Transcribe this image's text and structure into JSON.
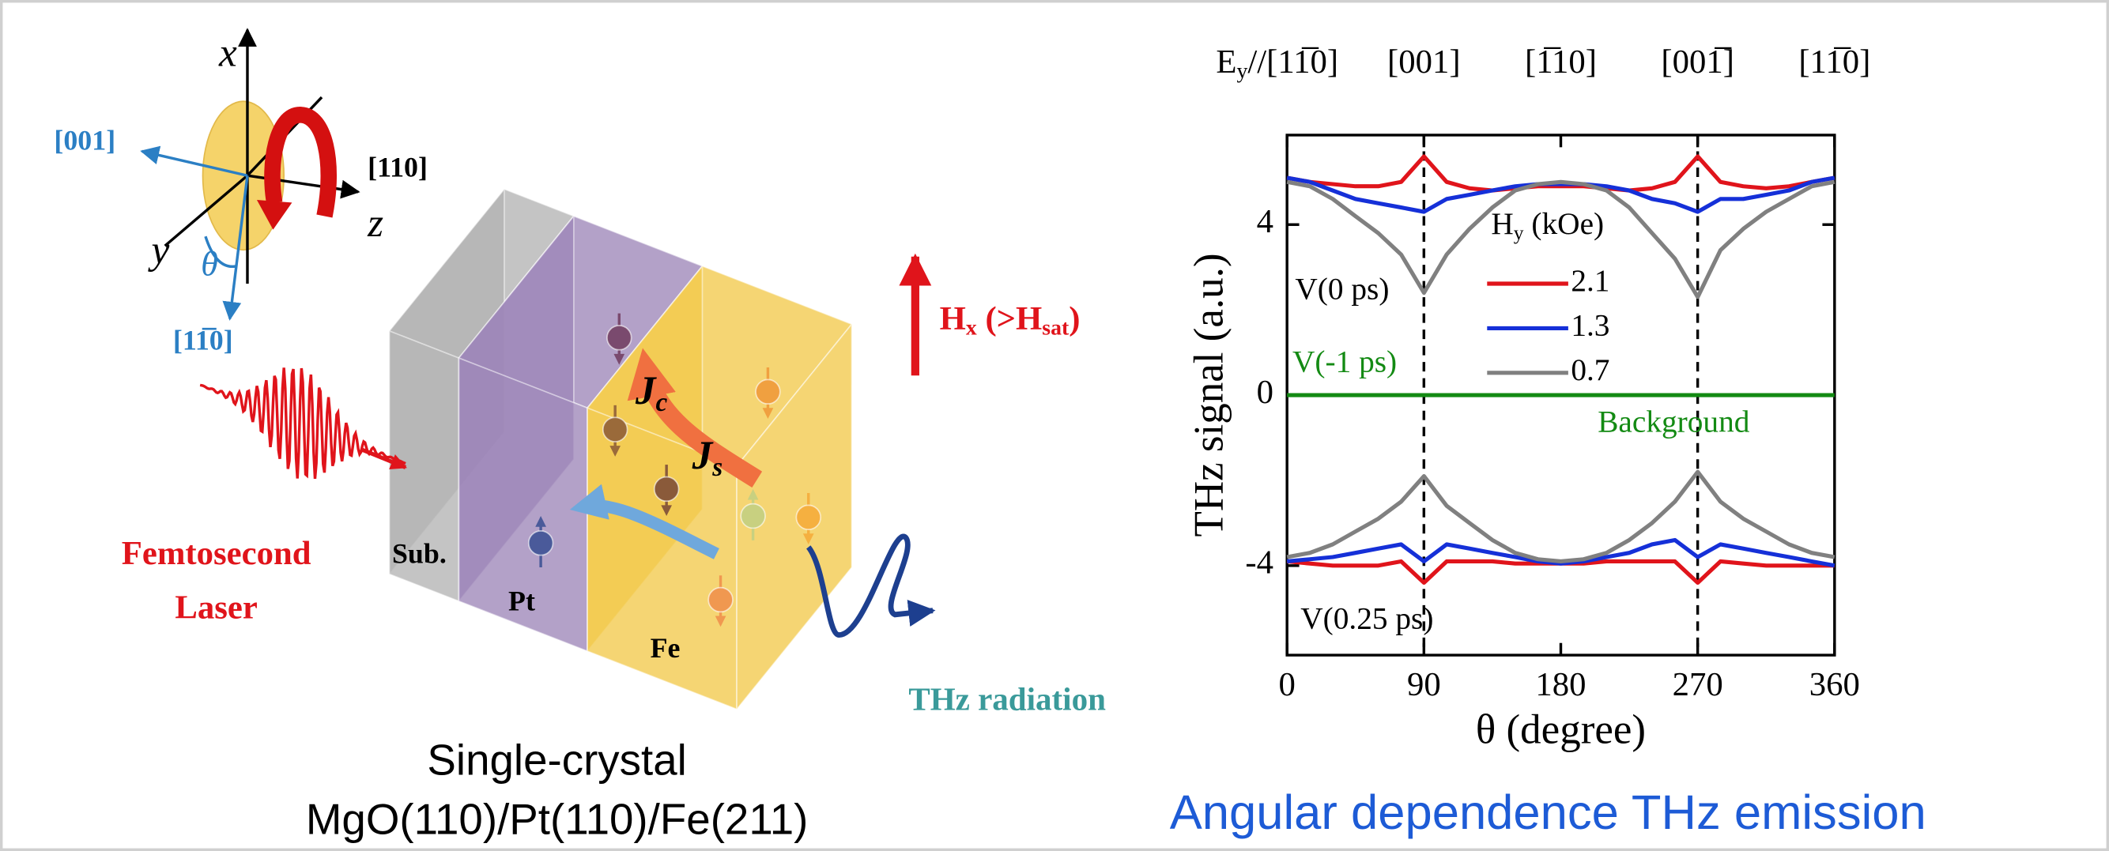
{
  "diagram": {
    "axes": {
      "x": "x",
      "y": "y",
      "z": "z",
      "theta": "θ"
    },
    "directions": [
      "[001]",
      "[110]",
      "[11̅0]"
    ],
    "laser": [
      "Femtosecond",
      "Laser"
    ],
    "layers": [
      "Sub.",
      "Pt",
      "Fe"
    ],
    "currents": [
      [
        {
          "text": "J"
        },
        {
          "text": "c",
          "sub": true
        }
      ],
      [
        {
          "text": "J"
        },
        {
          "text": "s",
          "sub": true
        }
      ]
    ],
    "field": [
      {
        "text": "H"
      },
      {
        "text": "x",
        "sub": true
      },
      {
        "text": " (>H"
      },
      {
        "text": "sat",
        "sub": true
      },
      {
        "text": ")"
      }
    ],
    "radiation": "THz radiation"
  },
  "caption_left": [
    "Single-crystal",
    "MgO(110)/Pt(110)/Fe(211)"
  ],
  "caption_right": "Angular dependence THz emission",
  "chart_data": {
    "type": "line",
    "xlabel": "θ (degree)",
    "ylabel": "THz signal (a.u.)",
    "x": [
      0,
      15,
      30,
      45,
      60,
      75,
      90,
      105,
      120,
      135,
      150,
      165,
      180,
      195,
      210,
      225,
      240,
      255,
      270,
      285,
      300,
      315,
      330,
      345,
      360
    ],
    "xlim": [
      0,
      360
    ],
    "xticks": [
      0,
      90,
      180,
      270,
      360
    ],
    "x2ticks": [
      {
        "value": 0,
        "label": [
          {
            "text": "E"
          },
          {
            "text": "y",
            "sub": true
          },
          {
            "text": "//[11̅0]"
          }
        ]
      },
      {
        "value": 90,
        "label": "[001]"
      },
      {
        "value": 180,
        "label": "[1̅10]"
      },
      {
        "value": 270,
        "label": "[001̅]"
      },
      {
        "value": 360,
        "label": "[11̅0]"
      }
    ],
    "ylim": [
      -6.1,
      6.1
    ],
    "yticks": [
      4,
      0,
      -4
    ],
    "vlines": [
      90,
      270
    ],
    "legend_title": [
      {
        "text": "H"
      },
      {
        "text": "y",
        "sub": true
      },
      {
        "text": " (kOe)"
      }
    ],
    "series": [
      {
        "name": "2.1",
        "color": "#e0141b",
        "values": [
          5.1,
          5.0,
          4.95,
          4.9,
          4.9,
          5.0,
          5.6,
          5.0,
          4.85,
          4.8,
          4.85,
          4.9,
          4.9,
          4.9,
          4.85,
          4.8,
          4.85,
          5.0,
          5.6,
          5.0,
          4.9,
          4.85,
          4.9,
          5.0,
          5.1
        ],
        "values_lower": [
          -3.9,
          -3.95,
          -4.0,
          -4.0,
          -4.0,
          -3.9,
          -4.4,
          -3.9,
          -3.9,
          -3.9,
          -3.95,
          -3.95,
          -3.95,
          -3.95,
          -3.9,
          -3.9,
          -3.9,
          -3.9,
          -4.4,
          -3.9,
          -3.95,
          -4.0,
          -4.0,
          -4.0,
          -4.0
        ]
      },
      {
        "name": "1.3",
        "color": "#1530d8",
        "values": [
          5.1,
          5.0,
          4.8,
          4.6,
          4.5,
          4.4,
          4.3,
          4.6,
          4.7,
          4.8,
          4.9,
          4.95,
          4.95,
          4.95,
          4.9,
          4.8,
          4.6,
          4.5,
          4.3,
          4.6,
          4.6,
          4.7,
          4.8,
          5.0,
          5.1
        ],
        "values_lower": [
          -3.9,
          -3.85,
          -3.8,
          -3.7,
          -3.6,
          -3.5,
          -3.9,
          -3.5,
          -3.6,
          -3.7,
          -3.8,
          -3.9,
          -3.95,
          -3.9,
          -3.8,
          -3.7,
          -3.5,
          -3.4,
          -3.8,
          -3.5,
          -3.6,
          -3.7,
          -3.8,
          -3.9,
          -4.0
        ]
      },
      {
        "name": "0.7",
        "color": "#808080",
        "values": [
          5.0,
          4.9,
          4.6,
          4.2,
          3.8,
          3.3,
          2.4,
          3.3,
          3.9,
          4.4,
          4.8,
          4.95,
          5.0,
          4.95,
          4.8,
          4.4,
          3.8,
          3.2,
          2.3,
          3.4,
          3.9,
          4.3,
          4.6,
          4.9,
          5.0
        ],
        "values_lower": [
          -3.8,
          -3.7,
          -3.5,
          -3.2,
          -2.9,
          -2.5,
          -1.9,
          -2.6,
          -3.0,
          -3.4,
          -3.7,
          -3.85,
          -3.9,
          -3.85,
          -3.7,
          -3.4,
          -3.0,
          -2.5,
          -1.8,
          -2.5,
          -2.9,
          -3.2,
          -3.5,
          -3.7,
          -3.8
        ]
      }
    ],
    "baseline": {
      "label": "Background",
      "value": 0,
      "color": "#138a13"
    },
    "annotations": [
      {
        "text": "V(0 ps)",
        "color": "#000000"
      },
      {
        "text": "V(-1 ps)",
        "color": "#138a13"
      },
      {
        "text": "V(0.25 ps)",
        "color": "#000000"
      }
    ]
  }
}
